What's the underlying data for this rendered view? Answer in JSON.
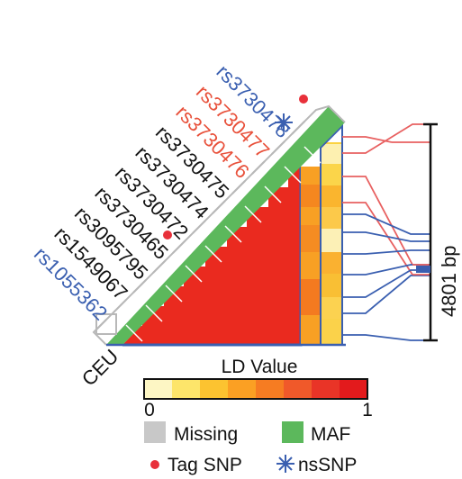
{
  "population": "CEU",
  "snps": [
    {
      "id": "rs1055362",
      "color": "#3a5fb0"
    },
    {
      "id": "rs1549067",
      "color": "#111111"
    },
    {
      "id": "rs3095795",
      "color": "#111111"
    },
    {
      "id": "rs3730465",
      "color": "#111111",
      "marker": "tag"
    },
    {
      "id": "rs3730472",
      "color": "#111111"
    },
    {
      "id": "rs3730474",
      "color": "#111111"
    },
    {
      "id": "rs3730475",
      "color": "#111111"
    },
    {
      "id": "rs3730476",
      "color": "#e8503a"
    },
    {
      "id": "rs3730477",
      "color": "#e8503a",
      "marker": "ns"
    },
    {
      "id": "rs3730478",
      "color": "#3a5fb0",
      "marker": "tag"
    }
  ],
  "scale": {
    "label": "4801 bp"
  },
  "colorbar": {
    "title": "LD Value",
    "min": "0",
    "max": "1",
    "colors": [
      "#fdf6c4",
      "#fde56a",
      "#fcc330",
      "#fba023",
      "#f67c22",
      "#f0592a",
      "#e93427",
      "#e31a1c"
    ]
  },
  "legend": {
    "missing": {
      "label": "Missing",
      "color": "#c8c8c8"
    },
    "maf": {
      "label": "MAF",
      "color": "#5cb85c"
    },
    "tag_snp": {
      "label": "Tag SNP",
      "color": "#e8303a"
    },
    "ns_snp": {
      "label": "nsSNP",
      "color": "#3a5fb0"
    }
  }
}
